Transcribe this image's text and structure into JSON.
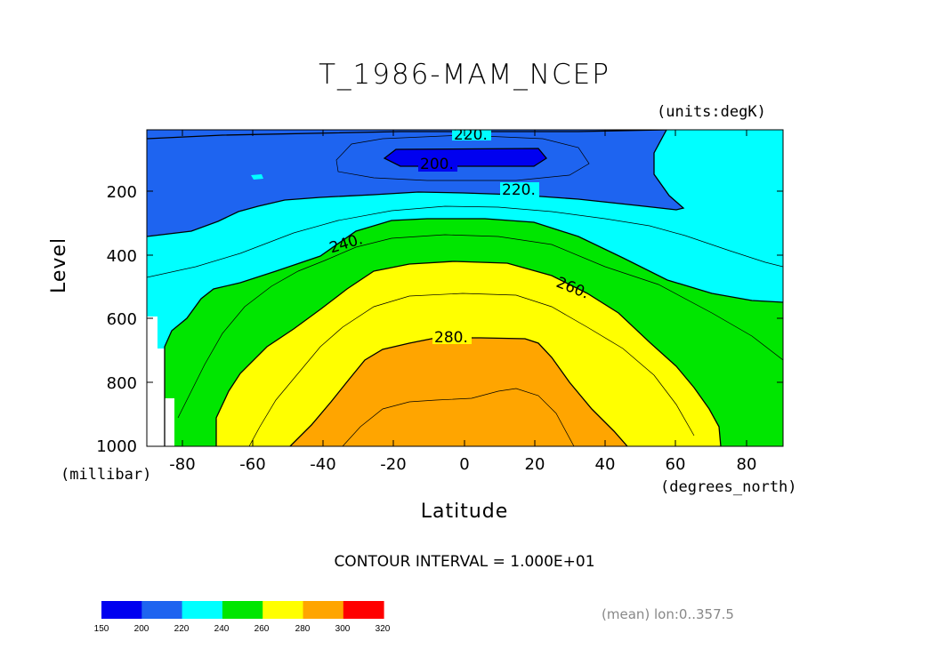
{
  "chart_data": {
    "type": "contour",
    "title": "T_1986-MAM_NCEP",
    "units_label": "(units:degK)",
    "xlabel": "Latitude",
    "x_units": "(degrees_north)",
    "ylabel": "Level",
    "y_units": "(millibar)",
    "xlim": [
      -90,
      90
    ],
    "ylim": [
      1000,
      10
    ],
    "x_ticks": [
      "-80",
      "-60",
      "-40",
      "-20",
      "0",
      "20",
      "40",
      "60",
      "80"
    ],
    "y_ticks": [
      "200",
      "400",
      "600",
      "800",
      "1000"
    ],
    "contour_labels": [
      "220.",
      "200.",
      "220.",
      "240.",
      "260.",
      "280."
    ],
    "contour_interval_text": "CONTOUR INTERVAL = 1.000E+01",
    "colorbar": {
      "ticks": [
        "150",
        "200",
        "220",
        "240",
        "260",
        "280",
        "300",
        "320"
      ],
      "colors": [
        "#0000f0",
        "#1e64f0",
        "#00ffff",
        "#00e600",
        "#ffff00",
        "#ffa500",
        "#ff0000"
      ]
    },
    "mean_label": "(mean) lon:0..357.5"
  }
}
